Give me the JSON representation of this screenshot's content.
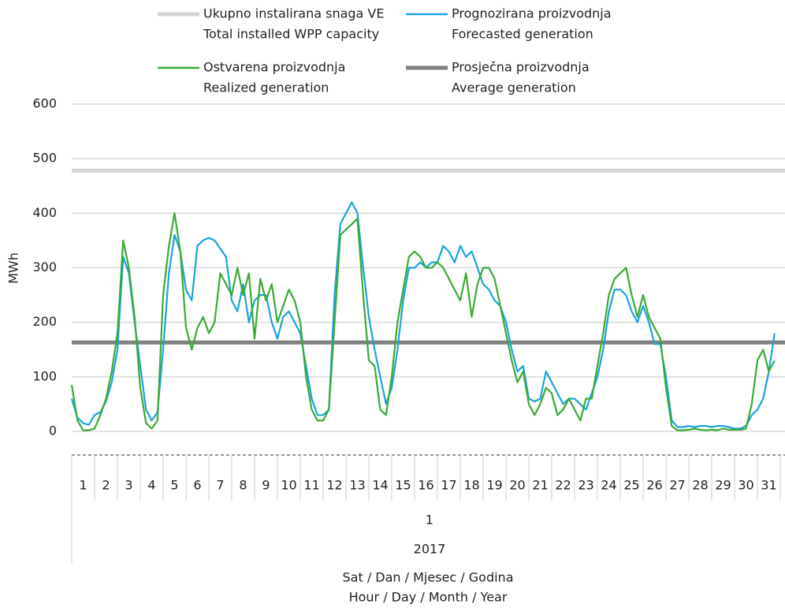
{
  "chart_data": {
    "type": "line",
    "y_label": "MWh",
    "x_title": [
      "Sat / Dan / Mjesec / Godina",
      "Hour / Day / Month / Year"
    ],
    "month": "1",
    "year": "2017",
    "xlim": [
      1,
      32
    ],
    "xticks": [
      {
        "value": 1.5,
        "label": "1"
      },
      {
        "value": 2.5,
        "label": "2"
      },
      {
        "value": 3.5,
        "label": "3"
      },
      {
        "value": 4.5,
        "label": "4"
      },
      {
        "value": 5.5,
        "label": "5"
      },
      {
        "value": 6.5,
        "label": "6"
      },
      {
        "value": 7.5,
        "label": "7"
      },
      {
        "value": 8.5,
        "label": "8"
      },
      {
        "value": 9.5,
        "label": "9"
      },
      {
        "value": 10.5,
        "label": "10"
      },
      {
        "value": 11.5,
        "label": "11"
      },
      {
        "value": 12.5,
        "label": "12"
      },
      {
        "value": 13.5,
        "label": "13"
      },
      {
        "value": 14.5,
        "label": "14"
      },
      {
        "value": 15.5,
        "label": "15"
      },
      {
        "value": 16.5,
        "label": "16"
      },
      {
        "value": 17.5,
        "label": "17"
      },
      {
        "value": 18.5,
        "label": "18"
      },
      {
        "value": 19.5,
        "label": "19"
      },
      {
        "value": 20.5,
        "label": "20"
      },
      {
        "value": 21.5,
        "label": "21"
      },
      {
        "value": 22.5,
        "label": "22"
      },
      {
        "value": 23.5,
        "label": "23"
      },
      {
        "value": 24.5,
        "label": "24"
      },
      {
        "value": 25.5,
        "label": "25"
      },
      {
        "value": 26.5,
        "label": "26"
      },
      {
        "value": 27.5,
        "label": "27"
      },
      {
        "value": 28.5,
        "label": "28"
      },
      {
        "value": 29.5,
        "label": "29"
      },
      {
        "value": 30.5,
        "label": "30"
      },
      {
        "value": 31.5,
        "label": "31"
      }
    ],
    "ylim": [
      0,
      600
    ],
    "yticks": [
      0,
      100,
      200,
      300,
      400,
      500,
      600
    ],
    "grid": true,
    "x": [
      1,
      1.25,
      1.5,
      1.75,
      2,
      2.25,
      2.5,
      2.75,
      3,
      3.25,
      3.5,
      3.75,
      4,
      4.25,
      4.5,
      4.75,
      5,
      5.25,
      5.5,
      5.75,
      6,
      6.25,
      6.5,
      6.75,
      7,
      7.25,
      7.5,
      7.75,
      8,
      8.25,
      8.5,
      8.75,
      9,
      9.25,
      9.5,
      9.75,
      10,
      10.25,
      10.5,
      10.75,
      11,
      11.25,
      11.5,
      11.75,
      12,
      12.25,
      12.5,
      12.75,
      13,
      13.25,
      13.5,
      13.75,
      14,
      14.25,
      14.5,
      14.75,
      15,
      15.25,
      15.5,
      15.75,
      16,
      16.25,
      16.5,
      16.75,
      17,
      17.25,
      17.5,
      17.75,
      18,
      18.25,
      18.5,
      18.75,
      19,
      19.25,
      19.5,
      19.75,
      20,
      20.25,
      20.5,
      20.75,
      21,
      21.25,
      21.5,
      21.75,
      22,
      22.25,
      22.5,
      22.75,
      23,
      23.25,
      23.5,
      23.75,
      24,
      24.25,
      24.5,
      24.75,
      25,
      25.25,
      25.5,
      25.75,
      26,
      26.25,
      26.5,
      26.75,
      27,
      27.25,
      27.5,
      27.75,
      28,
      28.25,
      28.5,
      28.75,
      29,
      29.25,
      29.5,
      29.75,
      30,
      30.25,
      30.5,
      30.75,
      31,
      31.25,
      31.5,
      31.75
    ],
    "series": [
      {
        "name": "Ukupno instalirana snaga VE",
        "name_en": "Total installed WPP capacity",
        "color": "#d0d4d6",
        "constant": 478
      },
      {
        "name": "Prognozirana proizvodnja",
        "name_en": "Forecasted generation",
        "color": "#1aa3dc",
        "values": [
          60,
          25,
          15,
          12,
          30,
          35,
          55,
          90,
          150,
          320,
          290,
          200,
          120,
          40,
          20,
          35,
          150,
          290,
          360,
          330,
          260,
          240,
          340,
          350,
          355,
          350,
          335,
          320,
          240,
          220,
          270,
          200,
          240,
          250,
          250,
          200,
          170,
          210,
          220,
          200,
          180,
          120,
          60,
          30,
          30,
          40,
          250,
          380,
          400,
          420,
          400,
          300,
          210,
          150,
          100,
          50,
          80,
          150,
          240,
          300,
          300,
          310,
          300,
          310,
          310,
          340,
          330,
          310,
          340,
          320,
          330,
          300,
          270,
          260,
          240,
          230,
          200,
          150,
          110,
          120,
          60,
          55,
          60,
          110,
          90,
          70,
          50,
          60,
          60,
          50,
          40,
          70,
          100,
          150,
          220,
          260,
          260,
          250,
          220,
          200,
          230,
          200,
          160,
          160,
          100,
          20,
          8,
          8,
          10,
          8,
          10,
          10,
          8,
          10,
          10,
          8,
          5,
          5,
          10,
          30,
          40,
          60,
          110,
          180
        ]
      },
      {
        "name": "Ostvarena proizvodnja",
        "name_en": "Realized generation",
        "color": "#3aaa35",
        "values": [
          85,
          20,
          2,
          2,
          5,
          30,
          60,
          110,
          180,
          350,
          300,
          210,
          80,
          15,
          5,
          20,
          250,
          340,
          400,
          330,
          190,
          150,
          190,
          210,
          180,
          200,
          290,
          270,
          250,
          300,
          250,
          290,
          170,
          280,
          240,
          270,
          200,
          230,
          260,
          240,
          200,
          100,
          40,
          20,
          20,
          40,
          200,
          360,
          370,
          380,
          390,
          250,
          130,
          120,
          40,
          30,
          100,
          200,
          260,
          320,
          330,
          320,
          300,
          300,
          310,
          300,
          280,
          260,
          240,
          290,
          210,
          270,
          300,
          300,
          280,
          230,
          180,
          130,
          90,
          110,
          50,
          30,
          50,
          80,
          70,
          30,
          40,
          60,
          40,
          20,
          60,
          60,
          120,
          180,
          250,
          280,
          290,
          300,
          250,
          210,
          250,
          210,
          190,
          170,
          80,
          10,
          2,
          2,
          3,
          5,
          3,
          2,
          3,
          2,
          5,
          3,
          3,
          3,
          5,
          50,
          130,
          150,
          110,
          130
        ]
      },
      {
        "name": "Prosječna proizvodnja",
        "name_en": "Average generation",
        "color": "#808080",
        "constant": 163
      }
    ]
  }
}
